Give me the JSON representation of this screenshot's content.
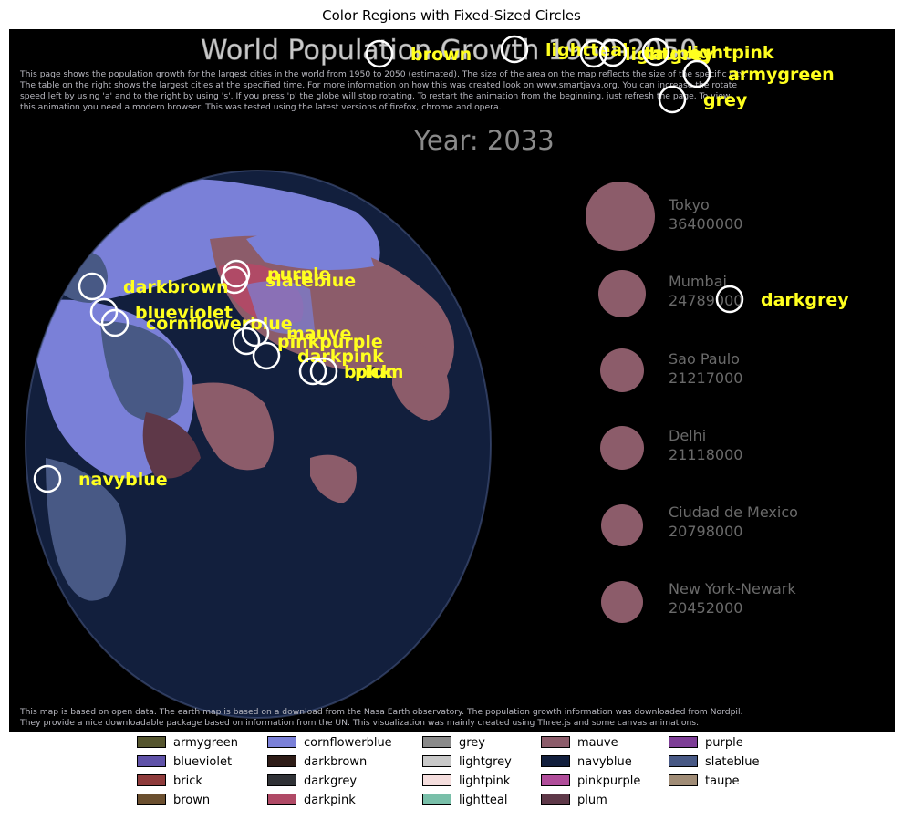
{
  "title": "Color Regions with Fixed-Sized Circles",
  "screen": {
    "heading": "World Population Growth 1950-2050",
    "description_lines": [
      "This page shows the population growth for the largest cities in the world from 1950 to 2050 (estimated). The size of the area on the map reflects the size of the specific city.",
      "The table on the right shows the largest cities at the specified time. For more information on how this was created look on www.smartjava.org. You can increase the rotate",
      "speed left by using 'a' and to the right by using 's'. If you press 'p' the globe will stop rotating. To restart the animation from the beginning, just refresh the page. To view",
      "this animation you need a modern browser. This was tested using the latest versions of firefox, chrome and opera."
    ],
    "year_label": "Year: 2033",
    "cities": [
      {
        "name": "Tokyo",
        "population": "36400000"
      },
      {
        "name": "Mumbai",
        "population": "24789000"
      },
      {
        "name": "Sao Paulo",
        "population": "21217000"
      },
      {
        "name": "Delhi",
        "population": "21118000"
      },
      {
        "name": "Ciudad de Mexico",
        "population": "20798000"
      },
      {
        "name": "New York-Newark",
        "population": "20452000"
      }
    ],
    "footer_lines": [
      "This map is based on open data. The earth map is based on a download from the Nasa Earth observatory. The population growth information was downloaded from Nordpil.",
      "They provide a nice downloadable package based on information from the UN. This visualization was mainly created using Three.js and some canvas animations."
    ]
  },
  "markers": [
    {
      "label": "brown"
    },
    {
      "label": "lightteal"
    },
    {
      "label": "lightgrey"
    },
    {
      "label": "taupe"
    },
    {
      "label": "lightpink"
    },
    {
      "label": "armygreen"
    },
    {
      "label": "grey"
    },
    {
      "label": "purple"
    },
    {
      "label": "slateblue"
    },
    {
      "label": "darkbrown"
    },
    {
      "label": "blueviolet"
    },
    {
      "label": "cornflowerblue"
    },
    {
      "label": "mauve"
    },
    {
      "label": "pinkpurple"
    },
    {
      "label": "darkpink"
    },
    {
      "label": "brick"
    },
    {
      "label": "plum"
    },
    {
      "label": "darkgrey"
    },
    {
      "label": "navyblue"
    }
  ],
  "legend": [
    {
      "label": "armygreen",
      "color": "#55552e"
    },
    {
      "label": "blueviolet",
      "color": "#5f52a8"
    },
    {
      "label": "brick",
      "color": "#8e3b3b"
    },
    {
      "label": "brown",
      "color": "#6b4f2f"
    },
    {
      "label": "cornflowerblue",
      "color": "#7a80d8"
    },
    {
      "label": "darkbrown",
      "color": "#2e1c17"
    },
    {
      "label": "darkgrey",
      "color": "#303236"
    },
    {
      "label": "darkpink",
      "color": "#b04a66"
    },
    {
      "label": "grey",
      "color": "#8a8a8a"
    },
    {
      "label": "lightgrey",
      "color": "#c9c9c9"
    },
    {
      "label": "lightpink",
      "color": "#f5dede"
    },
    {
      "label": "lightteal",
      "color": "#79bfa9"
    },
    {
      "label": "mauve",
      "color": "#8c5c6a"
    },
    {
      "label": "navyblue",
      "color": "#121f3d"
    },
    {
      "label": "pinkpurple",
      "color": "#b04d9a"
    },
    {
      "label": "plum",
      "color": "#5e3848"
    },
    {
      "label": "purple",
      "color": "#7d3d96"
    },
    {
      "label": "slateblue",
      "color": "#485985"
    },
    {
      "label": "taupe",
      "color": "#a08c76"
    }
  ],
  "colors": {
    "frame_bg": "#000000",
    "ocean": "#121f3d",
    "land_blue": "#7a80d8",
    "land_slate": "#485985",
    "land_mauve": "#8c5c6a",
    "city_disc": "#8c5c6a",
    "marker_stroke": "#ffffff",
    "marker_label": "#ffff1f"
  }
}
